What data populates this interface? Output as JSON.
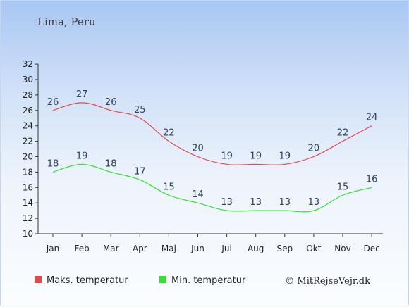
{
  "title": "Lima, Peru",
  "credit": "© MitRejseVejr.dk",
  "chart_data": {
    "type": "line",
    "categories": [
      "Jan",
      "Feb",
      "Mar",
      "Apr",
      "Maj",
      "Jun",
      "Jul",
      "Aug",
      "Sep",
      "Okt",
      "Nov",
      "Dec"
    ],
    "ylim": [
      10,
      32
    ],
    "yticks": [
      10,
      12,
      14,
      16,
      18,
      20,
      22,
      24,
      26,
      28,
      30,
      32
    ],
    "grid": false,
    "legend_position": "bottom",
    "series": [
      {
        "name": "Maks. temperatur",
        "color": "#e8474a",
        "values": [
          26,
          27,
          26,
          25,
          22,
          20,
          19,
          19,
          19,
          20,
          22,
          24
        ]
      },
      {
        "name": "Min. temperatur",
        "color": "#33e033",
        "values": [
          18,
          19,
          18,
          17,
          15,
          14,
          13,
          13,
          13,
          13,
          15,
          16
        ]
      }
    ]
  }
}
